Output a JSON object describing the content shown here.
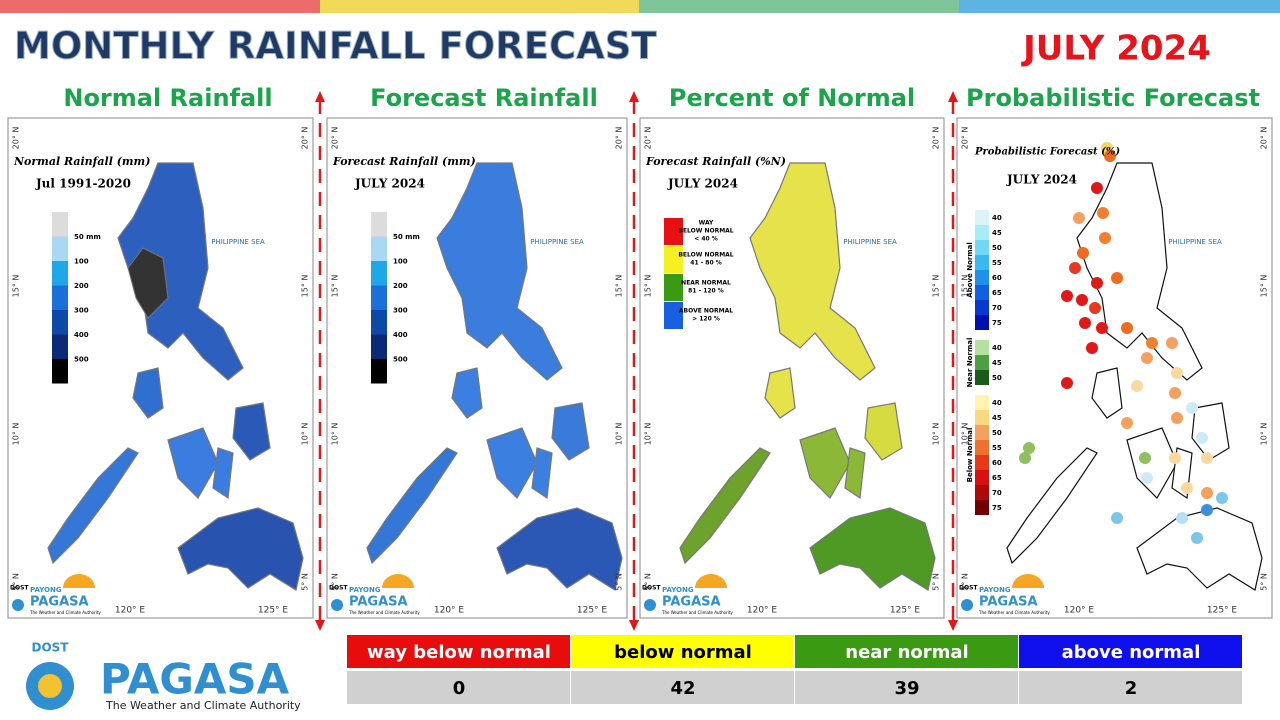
{
  "header": {
    "title": "MONTHLY RAINFALL FORECAST",
    "period": "JULY 2024"
  },
  "panels": [
    {
      "heading": "Normal Rainfall",
      "map_title": "Normal Rainfall (mm)",
      "map_subtitle": "Jul 1991-2020",
      "legend": [
        "50 mm",
        "100",
        "200",
        "300",
        "400",
        "500"
      ]
    },
    {
      "heading": "Forecast Rainfall",
      "map_title": "Forecast Rainfall (mm)",
      "map_subtitle": "JULY 2024",
      "legend": [
        "50 mm",
        "100",
        "200",
        "300",
        "400",
        "500"
      ]
    },
    {
      "heading": "Percent of Normal",
      "map_title": "Forecast Rainfall (%N)",
      "map_subtitle": "JULY 2024",
      "legend": [
        [
          "WAY",
          "BELOW NORMAL",
          "< 40 %"
        ],
        [
          "BELOW NORMAL",
          "41 - 80 %"
        ],
        [
          "NEAR NORMAL",
          "81 - 120 %"
        ],
        [
          "ABOVE NORMAL",
          "> 120 %"
        ]
      ]
    },
    {
      "heading": "Probabilistic Forecast",
      "map_title": "Probabilistic Forecast (%)",
      "map_subtitle": "JULY 2024",
      "legend_groups": [
        {
          "name": "Above Normal",
          "labels": [
            "40",
            "45",
            "50",
            "55",
            "60",
            "65",
            "70",
            "75"
          ]
        },
        {
          "name": "Near Normal",
          "labels": [
            "40",
            "45",
            "50"
          ]
        },
        {
          "name": "Below Normal",
          "labels": [
            "40",
            "45",
            "50",
            "55",
            "60",
            "65",
            "70",
            "75"
          ]
        }
      ]
    }
  ],
  "map_labels": {
    "sea": "PHILIPPINE SEA",
    "lat": [
      "20° N",
      "15° N",
      "10° N",
      "5° N"
    ],
    "lon": [
      "120° E",
      "125° E"
    ]
  },
  "small_logo": {
    "agency": "DOST",
    "brand": "PAYONG",
    "name": "PAGASA",
    "tagline": "The Weather and Climate Authority"
  },
  "table": {
    "headers": [
      "way below normal",
      "below normal",
      "near normal",
      "above normal"
    ],
    "counts": [
      "0",
      "42",
      "39",
      "2"
    ]
  },
  "footer_logo": {
    "agency": "DOST",
    "name": "PAGASA",
    "tagline": "The Weather and Climate Authority"
  }
}
